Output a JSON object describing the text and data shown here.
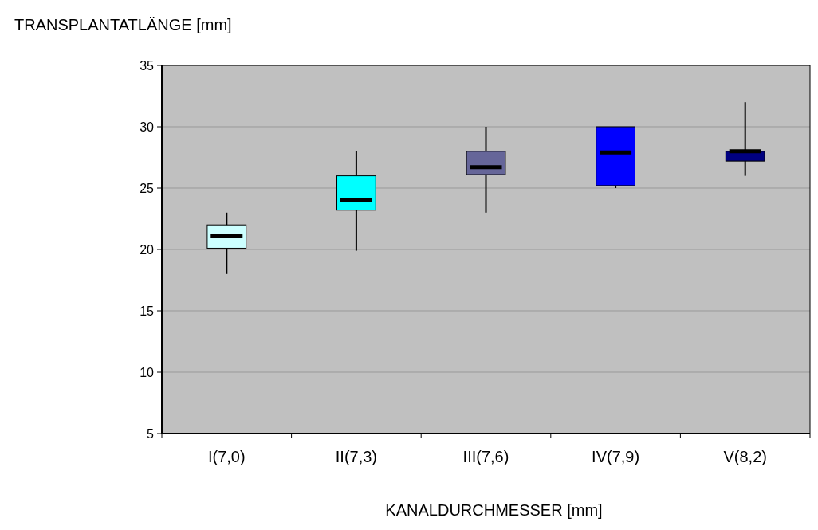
{
  "chart_data": {
    "type": "box",
    "xlabel": "KANALDURCHMESSER [mm]",
    "ylabel": "TRANSPLANTATLÄNGE [mm]",
    "categories": [
      "I(7,0)",
      "II(7,3)",
      "III(7,6)",
      "IV(7,9)",
      "V(8,2)"
    ],
    "colors": [
      "#ccffff",
      "#00ffff",
      "#666699",
      "#0000ff",
      "#000080"
    ],
    "boxes": [
      {
        "low": 18,
        "q1": 20.1,
        "median": 21.1,
        "q3": 22,
        "high": 23
      },
      {
        "low": 19.9,
        "q1": 23.2,
        "median": 24,
        "q3": 26,
        "high": 28
      },
      {
        "low": 23,
        "q1": 26.1,
        "median": 26.7,
        "q3": 28,
        "high": 30
      },
      {
        "low": 25,
        "q1": 25.2,
        "median": 27.9,
        "q3": 30,
        "high": 30
      },
      {
        "low": 26,
        "q1": 27.2,
        "median": 28,
        "q3": 28,
        "high": 32
      }
    ],
    "ylim": [
      5,
      35
    ],
    "yticks": [
      5,
      10,
      15,
      20,
      25,
      30,
      35
    ],
    "grid": "y"
  }
}
